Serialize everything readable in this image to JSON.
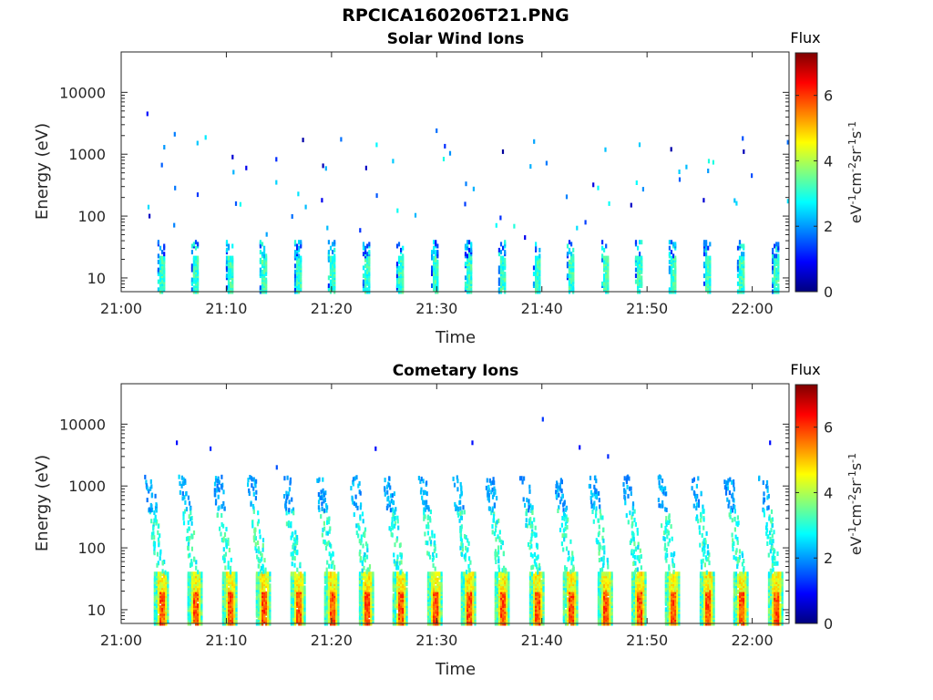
{
  "figure": {
    "filename_title": "RPCICA160206T21.PNG"
  },
  "chart_data": [
    {
      "type": "heatmap",
      "title": "Solar Wind Ions",
      "xlabel": "Time",
      "ylabel": "Energy (eV)",
      "x_ticks": [
        "21:00",
        "21:10",
        "21:20",
        "21:30",
        "21:40",
        "21:50",
        "22:00"
      ],
      "x_tick_minutes": [
        0,
        10,
        20,
        30,
        40,
        50,
        60
      ],
      "xlim_minutes": [
        0,
        63.5
      ],
      "yscale": "log",
      "y_ticks": [
        "10",
        "100",
        "1000",
        "10000"
      ],
      "y_tick_values": [
        10,
        100,
        1000,
        10000
      ],
      "ylim": [
        6,
        45000
      ],
      "colorbar": {
        "label": "Flux",
        "units": "eV",
        "units_full": "eV-1cm-2sr-1s-1",
        "ticks": [
          "0",
          "2",
          "4",
          "6"
        ],
        "tick_values": [
          0,
          2,
          4,
          6
        ],
        "range": [
          0,
          7.3
        ],
        "colormap": "jet"
      },
      "scan_period_minutes": 3.2,
      "pulse_times_minutes": [
        3.8,
        7.0,
        10.3,
        13.5,
        16.8,
        20.0,
        23.3,
        26.5,
        29.8,
        33.0,
        36.2,
        39.5,
        42.7,
        46.0,
        49.2,
        52.4,
        55.7,
        58.9,
        62.2
      ],
      "low_energy_band_eV": [
        6,
        40
      ],
      "peak_flux": 3.5,
      "scattered_points": [
        {
          "t": 2.4,
          "e": 4500,
          "v": 1.0
        },
        {
          "t": 2.5,
          "e": 140,
          "v": 2.5
        },
        {
          "t": 2.6,
          "e": 100,
          "v": 0.5
        },
        {
          "t": 5.0,
          "e": 2100,
          "v": 1.8
        },
        {
          "t": 4.0,
          "e": 1300,
          "v": 2.0
        },
        {
          "t": 10.5,
          "e": 900,
          "v": 0.6
        },
        {
          "t": 11.8,
          "e": 600,
          "v": 0.8
        },
        {
          "t": 17.2,
          "e": 1700,
          "v": 0.3
        },
        {
          "t": 19.1,
          "e": 650,
          "v": 0.4
        },
        {
          "t": 19.0,
          "e": 180,
          "v": 0.8
        },
        {
          "t": 23.2,
          "e": 600,
          "v": 0.5
        },
        {
          "t": 29.9,
          "e": 2400,
          "v": 1.7
        },
        {
          "t": 36.2,
          "e": 1100,
          "v": 0.2
        },
        {
          "t": 38.3,
          "e": 45,
          "v": 0.8
        },
        {
          "t": 44.8,
          "e": 320,
          "v": 0.7
        },
        {
          "t": 48.4,
          "e": 150,
          "v": 0.5
        },
        {
          "t": 52.2,
          "e": 1200,
          "v": 0.3
        },
        {
          "t": 55.3,
          "e": 180,
          "v": 0.6
        },
        {
          "t": 59.0,
          "e": 1800,
          "v": 1.5
        },
        {
          "t": 59.1,
          "e": 1100,
          "v": 0.4
        }
      ]
    },
    {
      "type": "heatmap",
      "title": "Cometary Ions",
      "xlabel": "Time",
      "ylabel": "Energy (eV)",
      "x_ticks": [
        "21:00",
        "21:10",
        "21:20",
        "21:30",
        "21:40",
        "21:50",
        "22:00"
      ],
      "x_tick_minutes": [
        0,
        10,
        20,
        30,
        40,
        50,
        60
      ],
      "xlim_minutes": [
        0,
        63.5
      ],
      "yscale": "log",
      "y_ticks": [
        "10",
        "100",
        "1000",
        "10000"
      ],
      "y_tick_values": [
        10,
        100,
        1000,
        10000
      ],
      "ylim": [
        6,
        45000
      ],
      "colorbar": {
        "label": "Flux",
        "units": "eV",
        "units_full": "eV-1cm-2sr-1s-1",
        "ticks": [
          "0",
          "2",
          "4",
          "6"
        ],
        "tick_values": [
          0,
          2,
          4,
          6
        ],
        "range": [
          0,
          7.3
        ],
        "colormap": "jet"
      },
      "scan_period_minutes": 3.2,
      "pulse_times_minutes": [
        3.8,
        7.0,
        10.3,
        13.5,
        16.8,
        20.0,
        23.3,
        26.5,
        29.8,
        33.0,
        36.2,
        39.5,
        42.7,
        46.0,
        49.2,
        52.4,
        55.7,
        58.9,
        62.2
      ],
      "core_band_eV": [
        6,
        40
      ],
      "core_peak_flux": 6.3,
      "dispersion_max_eV": 1500,
      "scattered_points": [
        {
          "t": 5.2,
          "e": 5000,
          "v": 1.0
        },
        {
          "t": 8.4,
          "e": 4000,
          "v": 1.2
        },
        {
          "t": 14.7,
          "e": 2000,
          "v": 1.5
        },
        {
          "t": 24.1,
          "e": 4000,
          "v": 1.0
        },
        {
          "t": 33.3,
          "e": 5000,
          "v": 1.0
        },
        {
          "t": 40.0,
          "e": 12000,
          "v": 1.3
        },
        {
          "t": 43.5,
          "e": 4200,
          "v": 1.0
        },
        {
          "t": 46.2,
          "e": 3000,
          "v": 1.2
        },
        {
          "t": 61.6,
          "e": 5000,
          "v": 1.0
        }
      ]
    }
  ]
}
